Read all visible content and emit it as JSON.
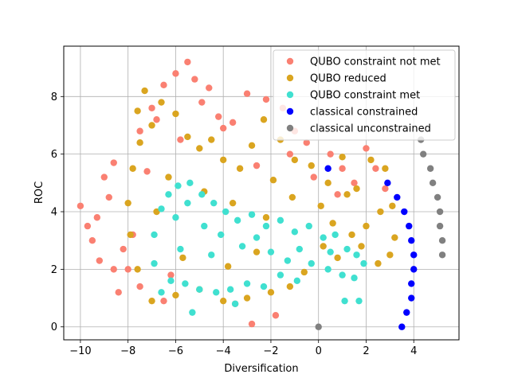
{
  "chart_data": {
    "type": "scatter",
    "xlabel": "Diversification",
    "ylabel": "ROC",
    "xlim": [
      -10.7,
      5.9
    ],
    "ylim": [
      -0.45,
      9.75
    ],
    "xticks": [
      -10,
      -8,
      -6,
      -4,
      -2,
      0,
      2,
      4
    ],
    "yticks": [
      0,
      2,
      4,
      6,
      8
    ],
    "grid": true,
    "legend_position": "top-right",
    "series": [
      {
        "name": "QUBO constraint not met",
        "color": "#fa8072",
        "region_note": "dense cloud",
        "points": [
          [
            -10,
            4.2
          ],
          [
            -9.7,
            3.5
          ],
          [
            -9.5,
            3.0
          ],
          [
            -9.2,
            2.3
          ],
          [
            -9.0,
            5.2
          ],
          [
            -8.6,
            5.7
          ],
          [
            -8.4,
            1.2
          ],
          [
            -8.8,
            4.5
          ],
          [
            -9.3,
            3.8
          ],
          [
            -8.2,
            2.7
          ],
          [
            -7.5,
            6.8
          ],
          [
            -7.0,
            7.6
          ],
          [
            -6.5,
            8.4
          ],
          [
            -6.0,
            8.8
          ],
          [
            -5.5,
            9.2
          ],
          [
            -5.2,
            8.6
          ],
          [
            -4.6,
            8.3
          ],
          [
            -4.2,
            7.3
          ],
          [
            -3.6,
            7.1
          ],
          [
            -3.0,
            8.1
          ],
          [
            -2.2,
            7.9
          ],
          [
            -1.5,
            7.6
          ],
          [
            -1.0,
            6.8
          ],
          [
            -0.5,
            6.4
          ],
          [
            0.5,
            6.0
          ],
          [
            1.0,
            5.5
          ],
          [
            1.5,
            5.0
          ],
          [
            2.0,
            6.2
          ],
          [
            2.4,
            5.5
          ],
          [
            2.8,
            4.8
          ],
          [
            -2.8,
            0.1
          ],
          [
            -1.8,
            0.4
          ],
          [
            -3.5,
            0.8
          ],
          [
            -6.5,
            0.9
          ],
          [
            -7.5,
            1.4
          ],
          [
            -8.0,
            2.0
          ],
          [
            -7.8,
            3.2
          ],
          [
            -8.6,
            2.0
          ],
          [
            -6.2,
            1.8
          ],
          [
            -5.8,
            6.5
          ],
          [
            -4.0,
            6.9
          ],
          [
            -1.2,
            6.0
          ],
          [
            -0.2,
            5.2
          ],
          [
            0.8,
            4.6
          ],
          [
            -2.6,
            5.6
          ],
          [
            -6.8,
            7.2
          ],
          [
            -7.2,
            5.4
          ],
          [
            -4.9,
            7.8
          ]
        ]
      },
      {
        "name": "QUBO reduced",
        "color": "#daa520",
        "points": [
          [
            -7.6,
            7.5
          ],
          [
            -7.3,
            8.2
          ],
          [
            -7.0,
            7.0
          ],
          [
            -6.6,
            7.8
          ],
          [
            -6.0,
            7.4
          ],
          [
            -5.5,
            6.6
          ],
          [
            -5.0,
            6.2
          ],
          [
            -4.5,
            6.5
          ],
          [
            -4.0,
            5.8
          ],
          [
            -3.3,
            5.5
          ],
          [
            -2.8,
            6.3
          ],
          [
            -2.3,
            7.2
          ],
          [
            -1.6,
            6.5
          ],
          [
            -1.0,
            5.8
          ],
          [
            -0.3,
            5.6
          ],
          [
            0.4,
            5.0
          ],
          [
            1.0,
            5.9
          ],
          [
            1.6,
            4.8
          ],
          [
            2.2,
            5.8
          ],
          [
            2.8,
            5.5
          ],
          [
            3.1,
            4.2
          ],
          [
            3.2,
            3.1
          ],
          [
            3.0,
            2.5
          ],
          [
            2.5,
            2.2
          ],
          [
            2.0,
            3.5
          ],
          [
            1.4,
            3.2
          ],
          [
            0.8,
            2.4
          ],
          [
            0.2,
            2.8
          ],
          [
            -0.6,
            1.9
          ],
          [
            -1.2,
            1.4
          ],
          [
            -2.0,
            1.2
          ],
          [
            -3.0,
            1.0
          ],
          [
            -4.0,
            0.9
          ],
          [
            -5.0,
            1.3
          ],
          [
            -6.0,
            1.1
          ],
          [
            -7.0,
            0.9
          ],
          [
            -7.6,
            2.0
          ],
          [
            -7.9,
            3.2
          ],
          [
            -8.0,
            4.3
          ],
          [
            -7.8,
            5.5
          ],
          [
            -7.5,
            6.4
          ],
          [
            -6.3,
            5.2
          ],
          [
            -4.8,
            4.7
          ],
          [
            -3.6,
            4.3
          ],
          [
            -2.2,
            3.8
          ],
          [
            -1.1,
            4.5
          ],
          [
            0.1,
            4.2
          ],
          [
            1.2,
            4.6
          ],
          [
            2.6,
            4.0
          ],
          [
            -5.7,
            2.4
          ],
          [
            -3.8,
            2.1
          ],
          [
            -2.6,
            2.6
          ],
          [
            -6.8,
            4.0
          ],
          [
            -1.9,
            5.1
          ],
          [
            0.6,
            3.6
          ],
          [
            1.8,
            2.8
          ]
        ]
      },
      {
        "name": "QUBO constraint met",
        "color": "#40e0d0",
        "points": [
          [
            -6.9,
            3.2
          ],
          [
            -6.6,
            4.1
          ],
          [
            -6.3,
            4.6
          ],
          [
            -5.9,
            4.9
          ],
          [
            -5.4,
            5.0
          ],
          [
            -4.9,
            4.6
          ],
          [
            -4.4,
            4.3
          ],
          [
            -3.9,
            4.0
          ],
          [
            -3.4,
            3.7
          ],
          [
            -2.8,
            3.9
          ],
          [
            -2.2,
            3.5
          ],
          [
            -1.6,
            3.7
          ],
          [
            -1.0,
            3.3
          ],
          [
            -0.4,
            3.5
          ],
          [
            0.2,
            3.1
          ],
          [
            0.7,
            3.2
          ],
          [
            1.2,
            2.7
          ],
          [
            1.6,
            2.5
          ],
          [
            1.9,
            2.2
          ],
          [
            1.5,
            1.7
          ],
          [
            1.0,
            1.8
          ],
          [
            0.4,
            2.0
          ],
          [
            -0.3,
            2.2
          ],
          [
            -0.9,
            1.6
          ],
          [
            -1.6,
            1.8
          ],
          [
            -2.3,
            1.4
          ],
          [
            -3.0,
            1.5
          ],
          [
            -3.7,
            1.3
          ],
          [
            -4.3,
            1.2
          ],
          [
            -5.0,
            1.3
          ],
          [
            -5.6,
            1.5
          ],
          [
            -6.2,
            1.6
          ],
          [
            -6.6,
            1.2
          ],
          [
            -6.9,
            2.2
          ],
          [
            -5.3,
            0.5
          ],
          [
            -3.5,
            0.8
          ],
          [
            -5.8,
            2.7
          ],
          [
            -4.5,
            2.5
          ],
          [
            -3.2,
            2.8
          ],
          [
            -2.0,
            2.6
          ],
          [
            -0.8,
            2.7
          ],
          [
            0.5,
            2.6
          ],
          [
            1.1,
            0.9
          ],
          [
            1.7,
            0.9
          ],
          [
            -6.0,
            3.8
          ],
          [
            -4.8,
            3.5
          ],
          [
            -2.6,
            3.1
          ],
          [
            -1.3,
            2.3
          ],
          [
            -5.5,
            4.3
          ],
          [
            -4.1,
            3.2
          ]
        ]
      },
      {
        "name": "classical constrained",
        "color": "#0000ff",
        "points": [
          [
            0.4,
            5.5
          ],
          [
            2.9,
            5.0
          ],
          [
            3.3,
            4.5
          ],
          [
            3.6,
            4.0
          ],
          [
            3.8,
            3.5
          ],
          [
            3.9,
            3.0
          ],
          [
            4.0,
            2.5
          ],
          [
            4.0,
            2.0
          ],
          [
            3.9,
            1.5
          ],
          [
            3.9,
            1.0
          ],
          [
            3.7,
            0.5
          ],
          [
            3.5,
            0.0
          ]
        ]
      },
      {
        "name": "classical unconstrained",
        "color": "#808080",
        "points": [
          [
            0.0,
            0.0
          ],
          [
            4.3,
            6.5
          ],
          [
            4.4,
            6.0
          ],
          [
            4.7,
            5.5
          ],
          [
            4.8,
            5.0
          ],
          [
            5.0,
            4.5
          ],
          [
            5.1,
            4.0
          ],
          [
            5.1,
            3.5
          ],
          [
            5.2,
            3.0
          ],
          [
            5.2,
            2.5
          ]
        ]
      }
    ]
  }
}
